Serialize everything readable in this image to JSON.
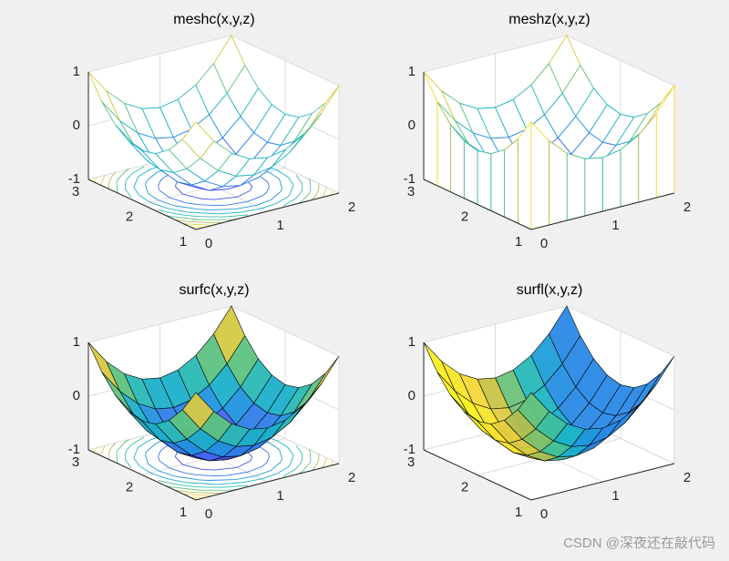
{
  "chart_data": [
    {
      "type": "meshc",
      "title": "meshc(x,y,z)",
      "x": [
        0,
        0.25,
        0.5,
        0.75,
        1,
        1.25,
        1.5,
        1.75,
        2
      ],
      "y": [
        1,
        1.25,
        1.5,
        1.75,
        2,
        2.25,
        2.5,
        2.75,
        3
      ],
      "z": [
        [
          1,
          0.5625,
          0.25,
          0.0625,
          0,
          0.0625,
          0.25,
          0.5625,
          1
        ],
        [
          0.5625,
          0.125,
          -0.1875,
          -0.375,
          -0.4375,
          -0.375,
          -0.1875,
          0.125,
          0.5625
        ],
        [
          0.25,
          -0.1875,
          -0.5,
          -0.6875,
          -0.75,
          -0.6875,
          -0.5,
          -0.1875,
          0.25
        ],
        [
          0.0625,
          -0.375,
          -0.6875,
          -0.875,
          -0.9375,
          -0.875,
          -0.6875,
          -0.375,
          0.0625
        ],
        [
          0,
          -0.4375,
          -0.75,
          -0.9375,
          -1,
          -0.9375,
          -0.75,
          -0.4375,
          0
        ],
        [
          0.0625,
          -0.375,
          -0.6875,
          -0.875,
          -0.9375,
          -0.875,
          -0.6875,
          -0.375,
          0.0625
        ],
        [
          0.25,
          -0.1875,
          -0.5,
          -0.6875,
          -0.75,
          -0.6875,
          -0.5,
          -0.1875,
          0.25
        ],
        [
          0.5625,
          0.125,
          -0.1875,
          -0.375,
          -0.4375,
          -0.375,
          -0.1875,
          0.125,
          0.5625
        ],
        [
          1,
          0.5625,
          0.25,
          0.0625,
          0,
          0.0625,
          0.25,
          0.5625,
          1
        ]
      ],
      "xlim": [
        0,
        2
      ],
      "ylim": [
        1,
        3
      ],
      "zlim": [
        -1,
        1
      ],
      "xticks": [
        0,
        1,
        2
      ],
      "yticks": [
        1,
        2,
        3
      ],
      "zticks": [
        -1,
        0,
        1
      ],
      "contour_levels": [
        -0.8,
        -0.6,
        -0.4,
        -0.2,
        0,
        0.2,
        0.4,
        0.6,
        0.8
      ],
      "colormap": [
        "#3e26a8",
        "#4662f6",
        "#2196e0",
        "#1cb5c6",
        "#4dc48c",
        "#b7bd4c",
        "#f9d63a",
        "#f9fb15"
      ],
      "grid": true
    },
    {
      "type": "meshz",
      "title": "meshz(x,y,z)",
      "x": [
        0,
        0.25,
        0.5,
        0.75,
        1,
        1.25,
        1.5,
        1.75,
        2
      ],
      "y": [
        1,
        1.25,
        1.5,
        1.75,
        2,
        2.25,
        2.5,
        2.75,
        3
      ],
      "z": [
        [
          1,
          0.5625,
          0.25,
          0.0625,
          0,
          0.0625,
          0.25,
          0.5625,
          1
        ],
        [
          0.5625,
          0.125,
          -0.1875,
          -0.375,
          -0.4375,
          -0.375,
          -0.1875,
          0.125,
          0.5625
        ],
        [
          0.25,
          -0.1875,
          -0.5,
          -0.6875,
          -0.75,
          -0.6875,
          -0.5,
          -0.1875,
          0.25
        ],
        [
          0.0625,
          -0.375,
          -0.6875,
          -0.875,
          -0.9375,
          -0.875,
          -0.6875,
          -0.375,
          0.0625
        ],
        [
          0,
          -0.4375,
          -0.75,
          -0.9375,
          -1,
          -0.9375,
          -0.75,
          -0.4375,
          0
        ],
        [
          0.0625,
          -0.375,
          -0.6875,
          -0.875,
          -0.9375,
          -0.875,
          -0.6875,
          -0.375,
          0.0625
        ],
        [
          0.25,
          -0.1875,
          -0.5,
          -0.6875,
          -0.75,
          -0.6875,
          -0.5,
          -0.1875,
          0.25
        ],
        [
          0.5625,
          0.125,
          -0.1875,
          -0.375,
          -0.4375,
          -0.375,
          -0.1875,
          0.125,
          0.5625
        ],
        [
          1,
          0.5625,
          0.25,
          0.0625,
          0,
          0.0625,
          0.25,
          0.5625,
          1
        ]
      ],
      "xlim": [
        0,
        2
      ],
      "ylim": [
        1,
        3
      ],
      "zlim": [
        -1,
        1
      ],
      "xticks": [
        0,
        1,
        2
      ],
      "yticks": [
        1,
        2,
        3
      ],
      "zticks": [
        -1,
        0,
        1
      ],
      "colormap": [
        "#3e26a8",
        "#4662f6",
        "#2196e0",
        "#1cb5c6",
        "#4dc48c",
        "#b7bd4c",
        "#f9d63a",
        "#f9fb15"
      ],
      "grid": true
    },
    {
      "type": "surfc",
      "title": "surfc(x,y,z)",
      "x": [
        0,
        0.25,
        0.5,
        0.75,
        1,
        1.25,
        1.5,
        1.75,
        2
      ],
      "y": [
        1,
        1.25,
        1.5,
        1.75,
        2,
        2.25,
        2.5,
        2.75,
        3
      ],
      "z": [
        [
          1,
          0.5625,
          0.25,
          0.0625,
          0,
          0.0625,
          0.25,
          0.5625,
          1
        ],
        [
          0.5625,
          0.125,
          -0.1875,
          -0.375,
          -0.4375,
          -0.375,
          -0.1875,
          0.125,
          0.5625
        ],
        [
          0.25,
          -0.1875,
          -0.5,
          -0.6875,
          -0.75,
          -0.6875,
          -0.5,
          -0.1875,
          0.25
        ],
        [
          0.0625,
          -0.375,
          -0.6875,
          -0.875,
          -0.9375,
          -0.875,
          -0.6875,
          -0.375,
          0.0625
        ],
        [
          0,
          -0.4375,
          -0.75,
          -0.9375,
          -1,
          -0.9375,
          -0.75,
          -0.4375,
          0
        ],
        [
          0.0625,
          -0.375,
          -0.6875,
          -0.875,
          -0.9375,
          -0.875,
          -0.6875,
          -0.375,
          0.0625
        ],
        [
          0.25,
          -0.1875,
          -0.5,
          -0.6875,
          -0.75,
          -0.6875,
          -0.5,
          -0.1875,
          0.25
        ],
        [
          0.5625,
          0.125,
          -0.1875,
          -0.375,
          -0.4375,
          -0.375,
          -0.1875,
          0.125,
          0.5625
        ],
        [
          1,
          0.5625,
          0.25,
          0.0625,
          0,
          0.0625,
          0.25,
          0.5625,
          1
        ]
      ],
      "xlim": [
        0,
        2
      ],
      "ylim": [
        1,
        3
      ],
      "zlim": [
        -1,
        1
      ],
      "xticks": [
        0,
        1,
        2
      ],
      "yticks": [
        1,
        2,
        3
      ],
      "zticks": [
        -1,
        0,
        1
      ],
      "contour_levels": [
        -0.8,
        -0.6,
        -0.4,
        -0.2,
        0,
        0.2,
        0.4,
        0.6,
        0.8
      ],
      "colormap": [
        "#3e26a8",
        "#4662f6",
        "#2196e0",
        "#1cb5c6",
        "#4dc48c",
        "#b7bd4c",
        "#f9d63a",
        "#f9fb15"
      ],
      "grid": true
    },
    {
      "type": "surfl",
      "title": "surfl(x,y,z)",
      "x": [
        0,
        0.25,
        0.5,
        0.75,
        1,
        1.25,
        1.5,
        1.75,
        2
      ],
      "y": [
        1,
        1.25,
        1.5,
        1.75,
        2,
        2.25,
        2.5,
        2.75,
        3
      ],
      "z": [
        [
          1,
          0.5625,
          0.25,
          0.0625,
          0,
          0.0625,
          0.25,
          0.5625,
          1
        ],
        [
          0.5625,
          0.125,
          -0.1875,
          -0.375,
          -0.4375,
          -0.375,
          -0.1875,
          0.125,
          0.5625
        ],
        [
          0.25,
          -0.1875,
          -0.5,
          -0.6875,
          -0.75,
          -0.6875,
          -0.5,
          -0.1875,
          0.25
        ],
        [
          0.0625,
          -0.375,
          -0.6875,
          -0.875,
          -0.9375,
          -0.875,
          -0.6875,
          -0.375,
          0.0625
        ],
        [
          0,
          -0.4375,
          -0.75,
          -0.9375,
          -1,
          -0.9375,
          -0.75,
          -0.4375,
          0
        ],
        [
          0.0625,
          -0.375,
          -0.6875,
          -0.875,
          -0.9375,
          -0.875,
          -0.6875,
          -0.375,
          0.0625
        ],
        [
          0.25,
          -0.1875,
          -0.5,
          -0.6875,
          -0.75,
          -0.6875,
          -0.5,
          -0.1875,
          0.25
        ],
        [
          0.5625,
          0.125,
          -0.1875,
          -0.375,
          -0.4375,
          -0.375,
          -0.1875,
          0.125,
          0.5625
        ],
        [
          1,
          0.5625,
          0.25,
          0.0625,
          0,
          0.0625,
          0.25,
          0.5625,
          1
        ]
      ],
      "xlim": [
        0,
        2
      ],
      "ylim": [
        1,
        3
      ],
      "zlim": [
        -1,
        1
      ],
      "xticks": [
        0,
        1,
        2
      ],
      "yticks": [
        1,
        2,
        3
      ],
      "zticks": [
        -1,
        0,
        1
      ],
      "colormap": [
        "#3e26a8",
        "#4662f6",
        "#2196e0",
        "#1cb5c6",
        "#4dc48c",
        "#b7bd4c",
        "#f9d63a",
        "#f9fb15"
      ],
      "grid": true
    }
  ],
  "watermark": "CSDN @深夜还在敲代码"
}
